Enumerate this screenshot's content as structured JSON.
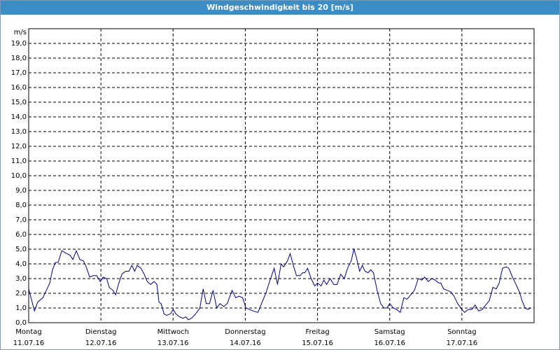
{
  "chart_data": {
    "type": "line",
    "title": "Windgeschwindigkeit bis 20 [m/s]",
    "y_unit": "m/s",
    "color": "#000080",
    "grid": true,
    "xlim": [
      0,
      168
    ],
    "xticks": [
      {
        "value": 0,
        "label": "Montag"
      },
      {
        "value": 24,
        "label": "Dienstag"
      },
      {
        "value": 48,
        "label": "Mittwoch"
      },
      {
        "value": 72,
        "label": "Donnerstag"
      },
      {
        "value": 96,
        "label": "Freitag"
      },
      {
        "value": 120,
        "label": "Samstag"
      },
      {
        "value": 144,
        "label": "Sonntag"
      }
    ],
    "xtick_dates": [
      "11.07.16",
      "12.07.16",
      "13.07.16",
      "14.07.16",
      "15.07.16",
      "16.07.16",
      "17.07.16"
    ],
    "ylim": [
      0,
      20
    ],
    "yticks": [
      {
        "value": 0,
        "label": "0,0"
      },
      {
        "value": 1,
        "label": "1,0"
      },
      {
        "value": 2,
        "label": "2,0"
      },
      {
        "value": 3,
        "label": "3,0"
      },
      {
        "value": 4,
        "label": "4,0"
      },
      {
        "value": 5,
        "label": "5,0"
      },
      {
        "value": 6,
        "label": "6,0"
      },
      {
        "value": 7,
        "label": "7,0"
      },
      {
        "value": 8,
        "label": "8,0"
      },
      {
        "value": 9,
        "label": "9,0"
      },
      {
        "value": 10,
        "label": "10,0"
      },
      {
        "value": 11,
        "label": "11,0"
      },
      {
        "value": 12,
        "label": "12,0"
      },
      {
        "value": 13,
        "label": "13,0"
      },
      {
        "value": 14,
        "label": "14,0"
      },
      {
        "value": 15,
        "label": "15,0"
      },
      {
        "value": 16,
        "label": "16,0"
      },
      {
        "value": 17,
        "label": "17,0"
      },
      {
        "value": 18,
        "label": "18,0"
      },
      {
        "value": 19,
        "label": "19,0"
      }
    ],
    "x": [
      0,
      1.9,
      3.0,
      4.7,
      6.1,
      7.0,
      7.9,
      8.9,
      9.8,
      11.0,
      12.6,
      13.7,
      14.7,
      15.8,
      17.0,
      18.2,
      19.1,
      20.3,
      21.4,
      22.6,
      23.8,
      24.7,
      25.9,
      26.8,
      28.0,
      28.9,
      29.8,
      31.0,
      32.2,
      33.3,
      34.3,
      35.2,
      36.1,
      37.3,
      38.4,
      39.4,
      40.5,
      41.7,
      42.6,
      43.3,
      44.0,
      45.0,
      45.9,
      47.1,
      48.0,
      48.9,
      50.1,
      51.3,
      52.2,
      53.1,
      54.1,
      55.5,
      56.9,
      58.0,
      59.0,
      60.1,
      61.3,
      62.5,
      63.6,
      64.8,
      66.0,
      67.6,
      68.8,
      69.9,
      71.1,
      72.2,
      73.4,
      74.6,
      76.2,
      77.4,
      78.8,
      80.4,
      81.6,
      82.7,
      83.9,
      84.8,
      86.0,
      86.9,
      88.1,
      89.0,
      90.2,
      91.1,
      91.8,
      92.7,
      93.9,
      95.1,
      96.0,
      97.2,
      98.1,
      99.0,
      100.2,
      101.4,
      102.5,
      103.7,
      104.9,
      106.0,
      107.2,
      108.1,
      109.0,
      110.0,
      110.9,
      111.8,
      112.8,
      113.7,
      114.6,
      115.8,
      117.0,
      118.1,
      119.1,
      120.0,
      121.2,
      122.3,
      123.5,
      124.7,
      125.8,
      127.0,
      128.2,
      129.5,
      130.7,
      131.6,
      132.8,
      134.0,
      135.1,
      136.3,
      137.0,
      137.9,
      139.1,
      140.3,
      141.4,
      142.6,
      144.0,
      144.9,
      146.1,
      147.3,
      148.4,
      149.6,
      150.8,
      151.9,
      153.1,
      154.3,
      155.4,
      156.4,
      157.5,
      158.7,
      159.6,
      160.8,
      162.0,
      163.1,
      164.0,
      165.0,
      165.9,
      166.8
    ],
    "values": [
      2.3,
      0.8,
      1.4,
      1.7,
      2.3,
      2.7,
      3.6,
      4.1,
      4.1,
      4.9,
      4.7,
      4.6,
      4.3,
      4.9,
      4.3,
      4.2,
      3.8,
      3.1,
      3.2,
      3.2,
      2.8,
      3.1,
      3.0,
      2.4,
      2.2,
      1.9,
      2.6,
      3.3,
      3.5,
      3.5,
      3.9,
      3.5,
      3.9,
      3.7,
      3.3,
      2.8,
      2.6,
      2.8,
      2.6,
      1.4,
      1.3,
      0.6,
      0.5,
      0.6,
      0.9,
      0.6,
      0.4,
      0.3,
      0.4,
      0.2,
      0.3,
      0.6,
      1.0,
      2.3,
      1.3,
      1.3,
      2.2,
      1.0,
      1.3,
      1.1,
      1.3,
      2.2,
      1.7,
      1.8,
      1.7,
      1.0,
      0.9,
      0.8,
      0.7,
      1.3,
      2.0,
      3.0,
      3.7,
      2.6,
      4.0,
      3.8,
      4.2,
      4.7,
      3.8,
      3.2,
      3.2,
      3.4,
      3.4,
      3.7,
      3.0,
      2.5,
      2.7,
      2.5,
      2.9,
      2.6,
      3.0,
      2.6,
      2.6,
      3.3,
      3.0,
      3.7,
      4.2,
      5.0,
      4.4,
      3.5,
      3.9,
      3.5,
      3.4,
      3.6,
      3.4,
      2.2,
      1.3,
      1.0,
      1.0,
      1.3,
      1.0,
      0.9,
      0.7,
      1.7,
      1.6,
      1.9,
      2.2,
      3.0,
      2.9,
      3.1,
      2.8,
      3.0,
      2.9,
      2.7,
      2.7,
      2.3,
      2.2,
      2.1,
      1.8,
      1.3,
      0.9,
      0.7,
      0.9,
      0.9,
      1.2,
      0.8,
      0.9,
      1.2,
      1.5,
      2.4,
      2.3,
      2.7,
      3.7,
      3.8,
      3.7,
      3.1,
      2.6,
      2.1,
      1.5,
      1.0,
      0.9,
      1.0
    ]
  }
}
